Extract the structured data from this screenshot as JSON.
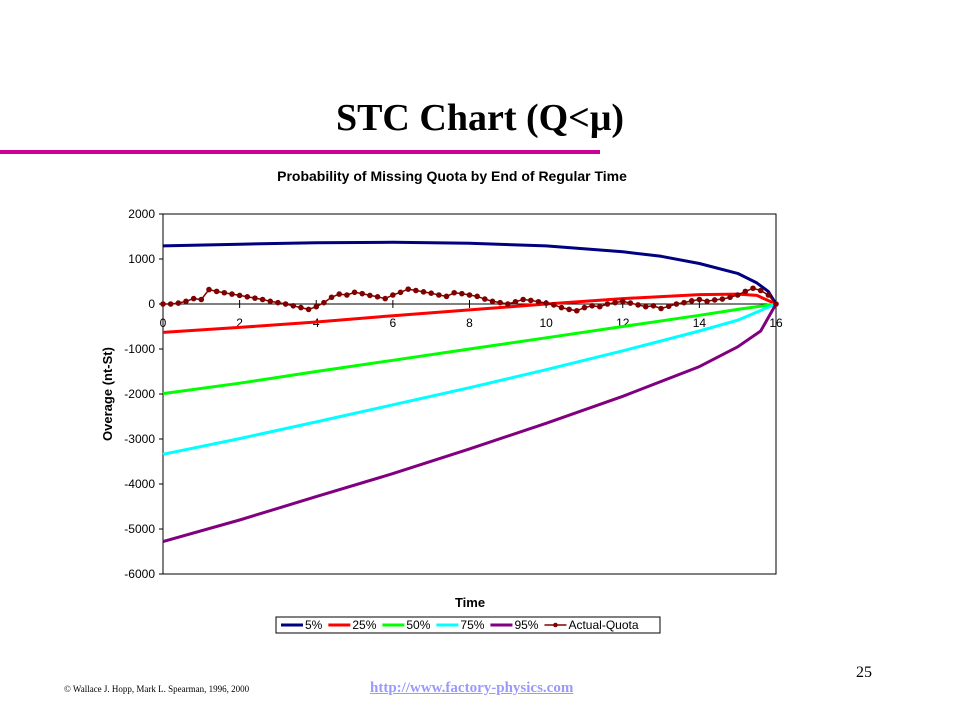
{
  "slide": {
    "title": "STC Chart (Q<μ)",
    "page_number": "25",
    "footer_copyright": "© Wallace J. Hopp, Mark L. Spearman, 1996, 2000",
    "footer_link": "http://www.factory-physics.com"
  },
  "colors": {
    "title_rule": "#cc0099",
    "link": "#9999ff"
  },
  "chart_data": {
    "type": "line",
    "title": "Probability of Missing Quota by End of Regular Time",
    "xlabel": "Time",
    "ylabel": "Overage (nt-St)",
    "xlim": [
      0,
      16
    ],
    "ylim": [
      -6000,
      2000
    ],
    "xticks": [
      0,
      2,
      4,
      6,
      8,
      10,
      12,
      14,
      16
    ],
    "yticks": [
      2000,
      1000,
      0,
      -1000,
      -2000,
      -3000,
      -4000,
      -5000,
      -6000
    ],
    "grid": false,
    "legend_position": "bottom",
    "series": [
      {
        "name": "5%",
        "color": "#000080",
        "marker": false,
        "x": [
          0,
          2,
          4,
          6,
          8,
          10,
          12,
          13,
          14,
          15,
          15.5,
          15.8,
          16
        ],
        "values": [
          1290,
          1330,
          1360,
          1370,
          1350,
          1290,
          1160,
          1060,
          900,
          680,
          470,
          280,
          0
        ]
      },
      {
        "name": "25%",
        "color": "#ff0000",
        "marker": false,
        "x": [
          0,
          2,
          4,
          6,
          8,
          10,
          12,
          14,
          15,
          15.5,
          16
        ],
        "values": [
          -630,
          -520,
          -400,
          -260,
          -130,
          0,
          120,
          210,
          220,
          190,
          0
        ]
      },
      {
        "name": "50%",
        "color": "#00ff00",
        "marker": false,
        "x": [
          0,
          2,
          4,
          6,
          8,
          10,
          12,
          14,
          15,
          16
        ],
        "values": [
          -1990,
          -1760,
          -1500,
          -1250,
          -1000,
          -750,
          -500,
          -250,
          -120,
          0
        ]
      },
      {
        "name": "75%",
        "color": "#00ffff",
        "marker": false,
        "x": [
          0,
          2,
          4,
          6,
          8,
          10,
          12,
          14,
          15,
          16
        ],
        "values": [
          -3340,
          -2990,
          -2620,
          -2240,
          -1860,
          -1460,
          -1040,
          -600,
          -360,
          0
        ]
      },
      {
        "name": "95%",
        "color": "#800080",
        "marker": false,
        "x": [
          0,
          2,
          4,
          6,
          8,
          10,
          12,
          14,
          15,
          15.6,
          16
        ],
        "values": [
          -5280,
          -4800,
          -4280,
          -3770,
          -3220,
          -2650,
          -2050,
          -1390,
          -950,
          -600,
          0
        ]
      },
      {
        "name": "Actual-Quota",
        "color": "#800000",
        "marker": true,
        "x": [
          0,
          0.2,
          0.4,
          0.6,
          0.8,
          1.0,
          1.2,
          1.4,
          1.6,
          1.8,
          2.0,
          2.2,
          2.4,
          2.6,
          2.8,
          3.0,
          3.2,
          3.4,
          3.6,
          3.8,
          4.0,
          4.2,
          4.4,
          4.6,
          4.8,
          5.0,
          5.2,
          5.4,
          5.6,
          5.8,
          6.0,
          6.2,
          6.4,
          6.6,
          6.8,
          7.0,
          7.2,
          7.4,
          7.6,
          7.8,
          8.0,
          8.2,
          8.4,
          8.6,
          8.8,
          9.0,
          9.2,
          9.4,
          9.6,
          9.8,
          10.0,
          10.2,
          10.4,
          10.6,
          10.8,
          11.0,
          11.2,
          11.4,
          11.6,
          11.8,
          12.0,
          12.2,
          12.4,
          12.6,
          12.8,
          13.0,
          13.2,
          13.4,
          13.6,
          13.8,
          14.0,
          14.2,
          14.4,
          14.6,
          14.8,
          15.0,
          15.2,
          15.4,
          15.6,
          15.8,
          16.0
        ],
        "values": [
          0,
          0,
          20,
          60,
          120,
          100,
          320,
          280,
          250,
          220,
          190,
          160,
          130,
          100,
          60,
          30,
          0,
          -40,
          -80,
          -120,
          -60,
          30,
          150,
          220,
          200,
          260,
          230,
          190,
          160,
          120,
          200,
          260,
          330,
          300,
          270,
          240,
          200,
          170,
          250,
          230,
          200,
          170,
          110,
          60,
          30,
          0,
          50,
          100,
          80,
          50,
          20,
          -20,
          -80,
          -120,
          -150,
          -80,
          -40,
          -60,
          0,
          30,
          60,
          20,
          -20,
          -60,
          -40,
          -100,
          -50,
          0,
          30,
          70,
          100,
          60,
          90,
          110,
          150,
          200,
          280,
          350,
          300,
          200,
          0
        ]
      }
    ]
  }
}
